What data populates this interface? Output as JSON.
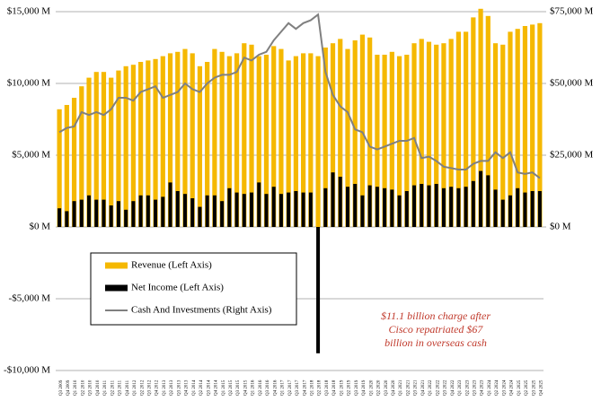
{
  "chart_data": {
    "type": "bar",
    "categories": [
      "Q3 2009",
      "Q4 2009",
      "Q1 2010",
      "Q2 2010",
      "Q3 2010",
      "Q4 2010",
      "Q1 2011",
      "Q2 2011",
      "Q3 2011",
      "Q4 2011",
      "Q1 2012",
      "Q2 2012",
      "Q3 2012",
      "Q4 2012",
      "Q1 2013",
      "Q2 2013",
      "Q3 2013",
      "Q4 2013",
      "Q1 2014",
      "Q2 2014",
      "Q3 2014",
      "Q4 2014",
      "Q1 2015",
      "Q2 2015",
      "Q3 2015",
      "Q4 2015",
      "Q1 2016",
      "Q2 2016",
      "Q3 2016",
      "Q4 2016",
      "Q1 2017",
      "Q2 2017",
      "Q3 2017",
      "Q4 2017",
      "Q1 2018",
      "Q2 2018",
      "Q3 2018",
      "Q4 2018",
      "Q1 2019",
      "Q2 2019",
      "Q3 2019",
      "Q4 2019",
      "Q1 2020",
      "Q2 2020",
      "Q3 2020",
      "Q4 2020",
      "Q1 2021",
      "Q2 2021",
      "Q3 2021",
      "Q4 2021",
      "Q1 2022",
      "Q2 2022",
      "Q3 2022",
      "Q4 2022",
      "Q1 2023",
      "Q2 2023",
      "Q3 2023",
      "Q4 2023",
      "Q1 2024",
      "Q2 2024",
      "Q3 2024",
      "Q4 2024",
      "Q1 2025",
      "Q2 2025",
      "Q3 2025",
      "Q4 2025"
    ],
    "series": [
      {
        "name": "Revenue (Left Axis)",
        "type": "bar",
        "color": "#f5b800",
        "values": [
          8200,
          8500,
          9000,
          9800,
          10400,
          10800,
          10800,
          10400,
          10900,
          11200,
          11300,
          11500,
          11600,
          11700,
          11900,
          12100,
          12200,
          12400,
          12100,
          11200,
          11500,
          12400,
          12200,
          11900,
          12100,
          12800,
          12700,
          11900,
          12000,
          12600,
          12400,
          11600,
          11900,
          12100,
          12100,
          11900,
          12500,
          12800,
          13100,
          12400,
          13000,
          13400,
          13200,
          12000,
          12000,
          12200,
          11900,
          12000,
          12800,
          13100,
          12900,
          12700,
          12800,
          13100,
          13600,
          13600,
          14600,
          15200,
          14700,
          12800,
          12700,
          13600,
          13800,
          14000,
          14100,
          14200
        ]
      },
      {
        "name": "Net Income (Left Axis)",
        "type": "bar",
        "color": "#000000",
        "values": [
          1300,
          1100,
          1800,
          1900,
          2200,
          1900,
          1900,
          1500,
          1800,
          1200,
          1800,
          2200,
          2200,
          1900,
          2100,
          3100,
          2500,
          2300,
          2000,
          1400,
          2200,
          2200,
          1800,
          2700,
          2400,
          2300,
          2400,
          3100,
          2300,
          2800,
          2300,
          2400,
          2500,
          2400,
          2400,
          -8800,
          2700,
          3800,
          3500,
          2800,
          3000,
          2200,
          2900,
          2800,
          2700,
          2600,
          2200,
          2500,
          2900,
          3000,
          2900,
          3000,
          2700,
          2800,
          2700,
          2800,
          3200,
          3900,
          3600,
          2600,
          1900,
          2200,
          2700,
          2400,
          2500,
          2500
        ]
      },
      {
        "name": "Cash And Investments (Right Axis)",
        "type": "line",
        "axis": "y2",
        "color": "#808080",
        "values": [
          33000,
          34500,
          35000,
          40000,
          39000,
          40000,
          39000,
          41000,
          45000,
          45000,
          44000,
          47000,
          48000,
          49000,
          45000,
          46000,
          47000,
          50000,
          48000,
          47000,
          50000,
          52000,
          53000,
          53000,
          54000,
          59000,
          58000,
          60000,
          61000,
          65000,
          68000,
          71000,
          69000,
          71000,
          72000,
          74000,
          54000,
          46000,
          42000,
          40000,
          34000,
          33000,
          28000,
          27000,
          28000,
          29000,
          30000,
          30000,
          31000,
          24000,
          24500,
          23000,
          21000,
          20500,
          20000,
          20000,
          22000,
          23000,
          23000,
          26000,
          24000,
          26000,
          19000,
          18500,
          19000,
          17000
        ]
      }
    ],
    "ylim": [
      -10000,
      15000
    ],
    "yticks": [
      {
        "value": -10000,
        "label": "-$10,000 M"
      },
      {
        "value": -5000,
        "label": "-$5,000 M"
      },
      {
        "value": 0,
        "label": "$0 M"
      },
      {
        "value": 5000,
        "label": "$5,000 M"
      },
      {
        "value": 10000,
        "label": "$10,000 M"
      },
      {
        "value": 15000,
        "label": "$15,000 M"
      }
    ],
    "y2lim": [
      -50000,
      75000
    ],
    "y2ticks": [
      {
        "value": 0,
        "label": "$0 M"
      },
      {
        "value": 25000,
        "label": "$25,000 M"
      },
      {
        "value": 50000,
        "label": "$50,000 M"
      },
      {
        "value": 75000,
        "label": "$75,000 M"
      }
    ],
    "grid": true,
    "annotation": [
      "$11.1 billion charge after",
      "Cisco repatriated $67",
      "billion in overseas cash"
    ]
  }
}
